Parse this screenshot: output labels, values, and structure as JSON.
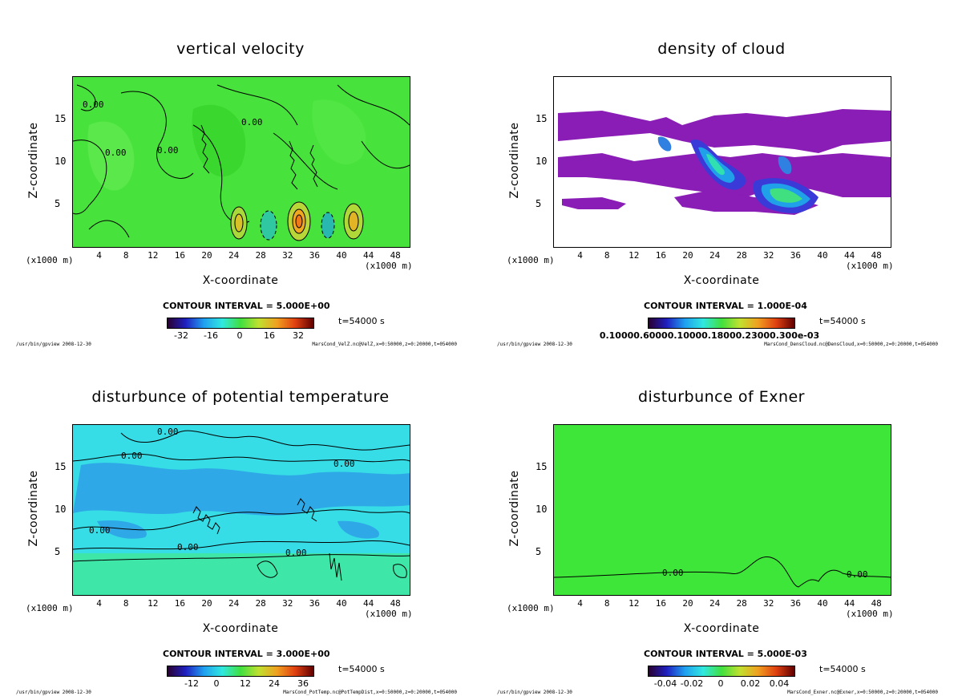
{
  "colors": {
    "green_field": "#44e83a",
    "purple_cloud": "#8b1fb4",
    "cyan_field": "#2fe0e8",
    "blue_field": "#2e9be8",
    "line": "#000000"
  },
  "common": {
    "xlabel": "X-coordinate",
    "ylabel": "Z-coordinate",
    "x_unit": "(x1000 m)",
    "time": "t=54000 s",
    "tool_path": "/usr/bin/gpview  2008-12-30"
  },
  "chart_data": [
    {
      "type": "heatmap",
      "title": "vertical velocity",
      "x_ticks": [
        "4",
        "8",
        "12",
        "16",
        "20",
        "24",
        "28",
        "32",
        "36",
        "40",
        "44",
        "48"
      ],
      "y_ticks": [
        "5",
        "10",
        "15"
      ],
      "xlim": [
        0,
        50
      ],
      "ylim": [
        0,
        20
      ],
      "contour_interval": "CONTOUR INTERVAL = 5.000E+00",
      "colorbar_ticks": [
        "-32",
        "-16",
        "0",
        "16",
        "32"
      ],
      "colorbar_range": [
        -40,
        40
      ],
      "contour_labels": [
        "0.00",
        "0.00",
        "0.00",
        "0.00"
      ],
      "source": "MarsCond_VelZ.nc@VelZ,x=0:50000,z=0:20000,t=054000"
    },
    {
      "type": "heatmap",
      "title": "density of cloud",
      "x_ticks": [
        "4",
        "8",
        "12",
        "16",
        "20",
        "24",
        "28",
        "32",
        "36",
        "40",
        "44",
        "48"
      ],
      "y_ticks": [
        "5",
        "10",
        "15"
      ],
      "xlim": [
        0,
        50
      ],
      "ylim": [
        0,
        20
      ],
      "contour_interval": "CONTOUR INTERVAL = 1.000E-04",
      "colorbar_ticks": [
        "0.10000.60000.10000.18000.23000.300e-03"
      ],
      "contour_labels": [],
      "source": "MarsCond_DensCloud.nc@DensCloud,x=0:50000,z=0:20000,t=054000"
    },
    {
      "type": "heatmap",
      "title": "disturbunce of potential temperature",
      "x_ticks": [
        "4",
        "8",
        "12",
        "16",
        "20",
        "24",
        "28",
        "32",
        "36",
        "40",
        "44",
        "48"
      ],
      "y_ticks": [
        "5",
        "10",
        "15"
      ],
      "xlim": [
        0,
        50
      ],
      "ylim": [
        0,
        20
      ],
      "contour_interval": "CONTOUR INTERVAL = 3.000E+00",
      "colorbar_ticks": [
        "-12",
        "0",
        "12",
        "24",
        "36"
      ],
      "colorbar_range": [
        -18,
        42
      ],
      "contour_labels": [
        "0.00",
        "0.00",
        "0.00",
        "0.00",
        "0.00",
        "0.00"
      ],
      "source": "MarsCond_PotTemp.nc@PotTempDist,x=0:50000,z=0:20000,t=054000"
    },
    {
      "type": "heatmap",
      "title": "disturbunce of Exner",
      "x_ticks": [
        "4",
        "8",
        "12",
        "16",
        "20",
        "24",
        "28",
        "32",
        "36",
        "40",
        "44",
        "48"
      ],
      "y_ticks": [
        "5",
        "10",
        "15"
      ],
      "xlim": [
        0,
        50
      ],
      "ylim": [
        0,
        20
      ],
      "contour_interval": "CONTOUR INTERVAL = 5.000E-03",
      "colorbar_ticks": [
        "-0.04",
        "-0.02",
        "0",
        "0.02",
        "0.04"
      ],
      "colorbar_range": [
        -0.05,
        0.05
      ],
      "contour_labels": [
        "0.00",
        "0.00"
      ],
      "source": "MarsCond_Exner.nc@Exner,x=0:50000,z=0:20000,t=054000"
    }
  ]
}
